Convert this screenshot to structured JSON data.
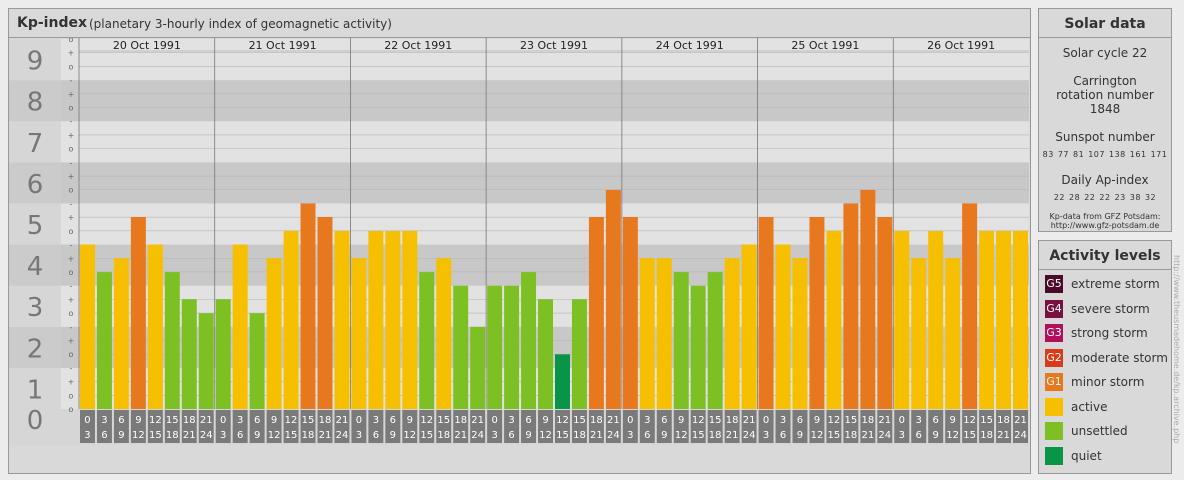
{
  "header": {
    "title": "Kp-index",
    "subtitle": "(planetary 3-hourly index of geomagnetic activity)"
  },
  "solar": {
    "title": "Solar data",
    "cycle": "Solar cycle 22",
    "carrington": "Carrington rotation number 1848",
    "sunspot_label": "Sunspot number",
    "sunspot_values": [
      "83",
      "77",
      "81",
      "107",
      "138",
      "161",
      "171"
    ],
    "ap_label": "Daily Ap-index",
    "ap_values": [
      "22",
      "28",
      "22",
      "22",
      "23",
      "38",
      "32"
    ],
    "source": "Kp-data from GFZ Potsdam: http://www.gfz-potsdam.de"
  },
  "levels": {
    "title": "Activity levels",
    "items": [
      {
        "code": "G5",
        "label": "extreme storm",
        "color": "#4a0a2a"
      },
      {
        "code": "G4",
        "label": "severe storm",
        "color": "#7a1040"
      },
      {
        "code": "G3",
        "label": "strong storm",
        "color": "#b0105a"
      },
      {
        "code": "G2",
        "label": "moderate storm",
        "color": "#d83a1a"
      },
      {
        "code": "G1",
        "label": "minor storm",
        "color": "#e8781e"
      },
      {
        "code": "",
        "label": "active",
        "color": "#f6c000"
      },
      {
        "code": "",
        "label": "unsettled",
        "color": "#7cc024"
      },
      {
        "code": "",
        "label": "quiet",
        "color": "#0a9448"
      }
    ]
  },
  "credit": "http://www.theusmadehome.de/kp.archive.php",
  "chart_data": {
    "type": "bar",
    "ylim": [
      0,
      9
    ],
    "y_ticks": [
      "0",
      "1",
      "2",
      "3",
      "4",
      "5",
      "6",
      "7",
      "8",
      "9"
    ],
    "minor_marks": [
      "-",
      "o",
      "+"
    ],
    "days": [
      "20 Oct 1991",
      "21 Oct 1991",
      "22 Oct 1991",
      "23 Oct 1991",
      "24 Oct 1991",
      "25 Oct 1991",
      "26 Oct 1991"
    ],
    "interval_top": [
      "0",
      "3",
      "6",
      "9",
      "12",
      "15",
      "18",
      "21"
    ],
    "interval_bottom": [
      "3",
      "6",
      "9",
      "12",
      "15",
      "18",
      "21",
      "24"
    ],
    "values": [
      4,
      3.33,
      3.67,
      4.67,
      4,
      3.33,
      2.67,
      2.33,
      2.67,
      4,
      2.33,
      3.67,
      4.33,
      5,
      4.67,
      4.33,
      3.67,
      4.33,
      4.33,
      4.33,
      3.33,
      3.67,
      3,
      2,
      3,
      3,
      3.33,
      2.67,
      1.33,
      2.67,
      4.67,
      5.33,
      4.67,
      3.67,
      3.67,
      3.33,
      3,
      3.33,
      3.67,
      4,
      4.67,
      4,
      3.67,
      4.67,
      4.33,
      5,
      5.33,
      4.67,
      4.33,
      3.67,
      4.33,
      3.67,
      5,
      4.33,
      4.33,
      4.33
    ],
    "colors": {
      "storm": "#e8781e",
      "active": "#f6c000",
      "unsettled": "#7cc024",
      "quiet": "#0a9448"
    }
  }
}
